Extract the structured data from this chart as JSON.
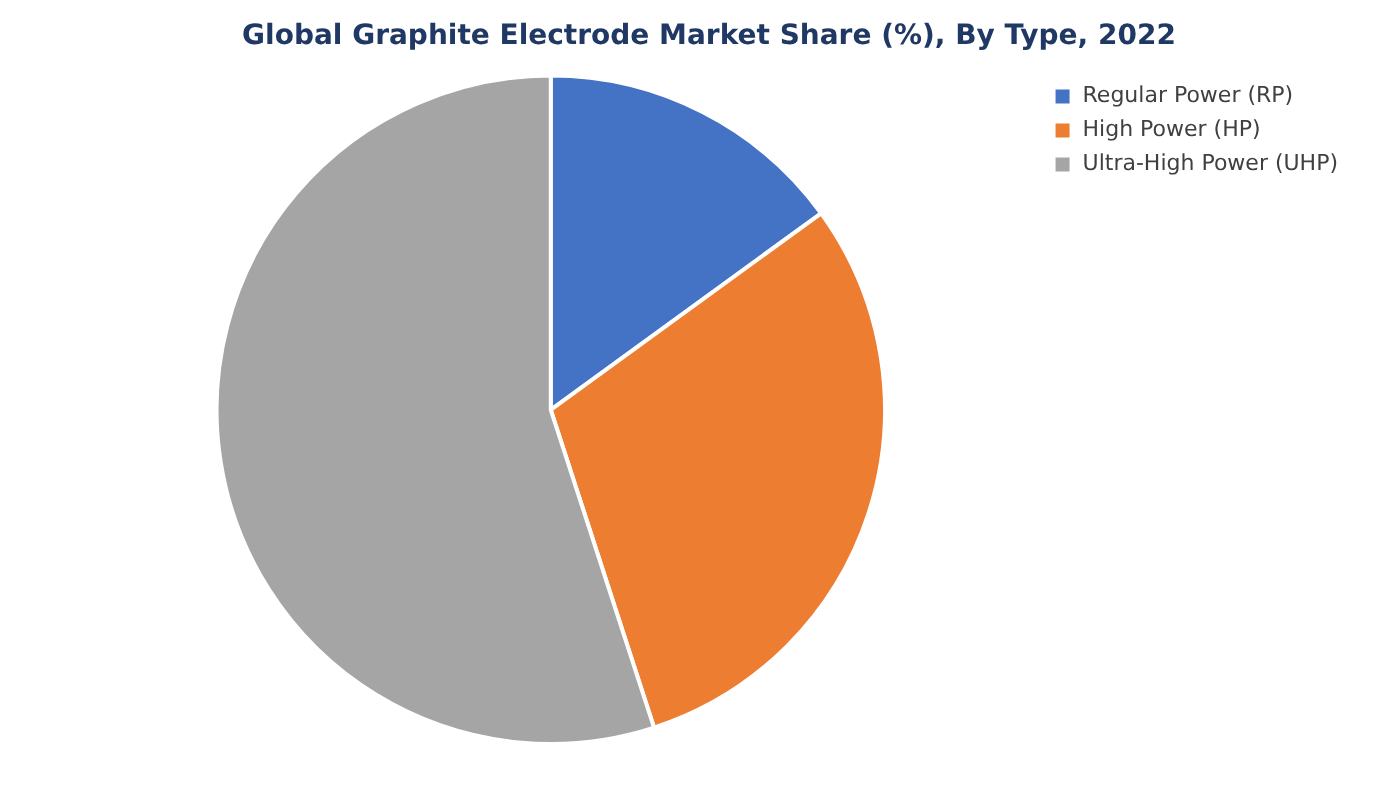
{
  "chart_data": {
    "type": "pie",
    "title": "Global Graphite Electrode Market Share (%), By Type, 2022",
    "categories": [
      "Regular Power (RP)",
      "High Power (HP)",
      "Ultra-High Power (UHP)"
    ],
    "values": [
      15,
      30,
      55
    ],
    "colors": [
      "#4472c4",
      "#ed7d31",
      "#a5a5a5"
    ],
    "legend": "top right"
  }
}
